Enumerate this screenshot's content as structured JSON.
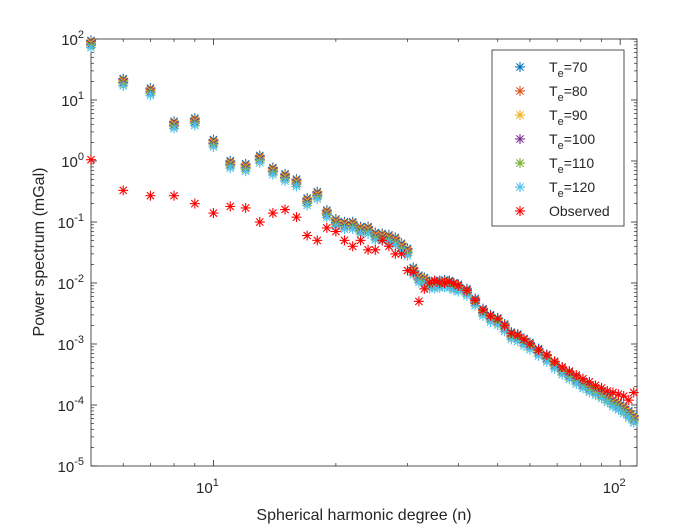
{
  "chart_data": {
    "type": "scatter",
    "xscale": "log",
    "yscale": "log",
    "xlim": [
      5,
      110
    ],
    "ylim": [
      1e-05,
      100
    ],
    "xlabel": "Spherical harmonic degree (n)",
    "ylabel": "Power spectrum (mGal)",
    "x_ticks": [
      {
        "value": 10,
        "base": "10",
        "exp": "1"
      },
      {
        "value": 100,
        "base": "10",
        "exp": "2"
      }
    ],
    "y_ticks": [
      {
        "value": 1e-05,
        "base": "10",
        "exp": "-5"
      },
      {
        "value": 0.0001,
        "base": "10",
        "exp": "-4"
      },
      {
        "value": 0.001,
        "base": "10",
        "exp": "-3"
      },
      {
        "value": 0.01,
        "base": "10",
        "exp": "-2"
      },
      {
        "value": 0.1,
        "base": "10",
        "exp": "-1"
      },
      {
        "value": 1,
        "base": "10",
        "exp": "0"
      },
      {
        "value": 10,
        "base": "10",
        "exp": "1"
      },
      {
        "value": 100,
        "base": "10",
        "exp": "2"
      }
    ],
    "grid": false,
    "legend_position": "top-right",
    "marker": "asterisk",
    "model_degrees": [
      5,
      6,
      7,
      8,
      9,
      10,
      11,
      12,
      13,
      14,
      15,
      16,
      17,
      18,
      19,
      20,
      21,
      22,
      23,
      24,
      25,
      26,
      27,
      28,
      29,
      30,
      31,
      32,
      33,
      34,
      35,
      36,
      37,
      38,
      39,
      40,
      42,
      44,
      46,
      48,
      50,
      52,
      54,
      56,
      58,
      60,
      63,
      66,
      69,
      72,
      75,
      78,
      81,
      84,
      87,
      90,
      93,
      96,
      99,
      102,
      105,
      108
    ],
    "model_base": [
      85,
      20,
      14,
      4.0,
      4.5,
      2.0,
      0.9,
      0.8,
      1.1,
      0.7,
      0.55,
      0.45,
      0.22,
      0.28,
      0.14,
      0.1,
      0.09,
      0.09,
      0.075,
      0.075,
      0.06,
      0.058,
      0.055,
      0.05,
      0.04,
      0.033,
      0.016,
      0.012,
      0.011,
      0.0095,
      0.0095,
      0.0098,
      0.01,
      0.0098,
      0.009,
      0.0085,
      0.0072,
      0.005,
      0.0034,
      0.0027,
      0.0024,
      0.0019,
      0.0014,
      0.0013,
      0.0011,
      0.00095,
      0.00075,
      0.0006,
      0.00046,
      0.00037,
      0.00031,
      0.00026,
      0.00022,
      0.00019,
      0.00017,
      0.00015,
      0.00013,
      0.00011,
      9.8e-05,
      8.5e-05,
      7.2e-05,
      6e-05
    ],
    "series": [
      {
        "name_base": "T",
        "name_sub": "e",
        "name_value": "=70",
        "color": "#0072BD",
        "scale": 1.12
      },
      {
        "name_base": "T",
        "name_sub": "e",
        "name_value": "=80",
        "color": "#D95319",
        "scale": 1.07
      },
      {
        "name_base": "T",
        "name_sub": "e",
        "name_value": "=90",
        "color": "#EDB120",
        "scale": 1.02
      },
      {
        "name_base": "T",
        "name_sub": "e",
        "name_value": "=100",
        "color": "#7E2F8E",
        "scale": 0.97
      },
      {
        "name_base": "T",
        "name_sub": "e",
        "name_value": "=110",
        "color": "#77AC30",
        "scale": 0.92
      },
      {
        "name_base": "T",
        "name_sub": "e",
        "name_value": "=120",
        "color": "#4DBEEE",
        "scale": 0.85
      },
      {
        "name": "Observed",
        "color": "#FF0000",
        "x": [
          5,
          6,
          7,
          8,
          9,
          10,
          11,
          12,
          13,
          14,
          15,
          16,
          17,
          18,
          19,
          20,
          21,
          22,
          23,
          24,
          25,
          26,
          27,
          28,
          29,
          30,
          31,
          32,
          33,
          34,
          35,
          36,
          37,
          38,
          39,
          40,
          42,
          44,
          46,
          48,
          50,
          52,
          54,
          56,
          58,
          60,
          63,
          66,
          69,
          72,
          75,
          78,
          81,
          84,
          87,
          90,
          93,
          96,
          99,
          102,
          105,
          108
        ],
        "y": [
          1.05,
          0.33,
          0.27,
          0.27,
          0.2,
          0.14,
          0.18,
          0.17,
          0.1,
          0.14,
          0.16,
          0.12,
          0.06,
          0.05,
          0.08,
          0.07,
          0.05,
          0.04,
          0.05,
          0.035,
          0.035,
          0.05,
          0.04,
          0.03,
          0.03,
          0.016,
          0.015,
          0.005,
          0.008,
          0.01,
          0.011,
          0.01,
          0.01,
          0.0105,
          0.0098,
          0.009,
          0.0075,
          0.0052,
          0.0036,
          0.0029,
          0.0026,
          0.002,
          0.0015,
          0.0014,
          0.0012,
          0.001,
          0.0008,
          0.00066,
          0.00052,
          0.00042,
          0.00036,
          0.00031,
          0.00027,
          0.00024,
          0.00021,
          0.00019,
          0.00017,
          0.00016,
          0.00015,
          0.00014,
          0.00012,
          0.00016
        ]
      }
    ]
  }
}
